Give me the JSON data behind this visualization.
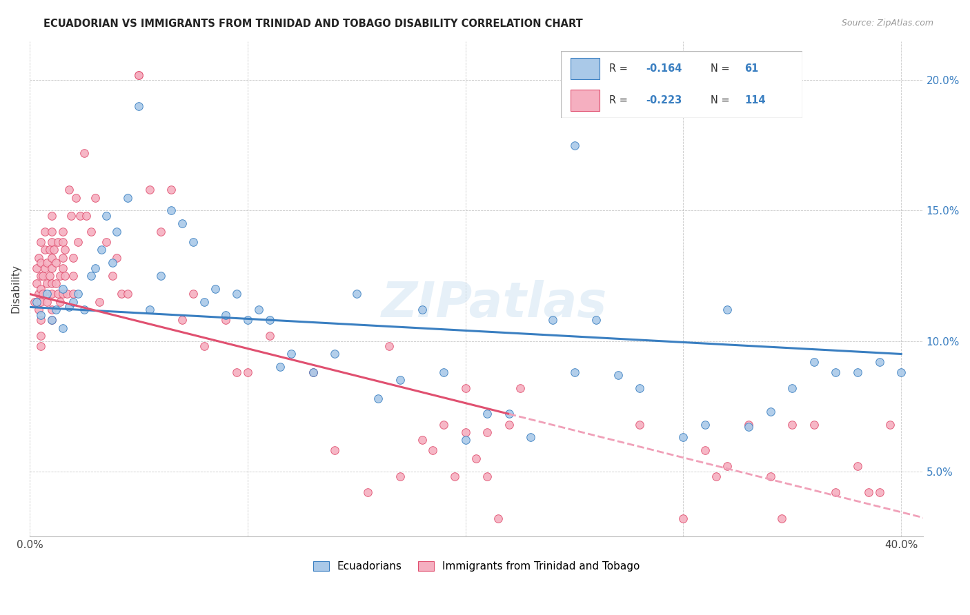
{
  "title": "ECUADORIAN VS IMMIGRANTS FROM TRINIDAD AND TOBAGO DISABILITY CORRELATION CHART",
  "source": "Source: ZipAtlas.com",
  "ylabel": "Disability",
  "xlim": [
    0.0,
    0.41
  ],
  "ylim": [
    0.025,
    0.215
  ],
  "yticks": [
    0.05,
    0.1,
    0.15,
    0.2
  ],
  "ytick_labels": [
    "5.0%",
    "10.0%",
    "15.0%",
    "20.0%"
  ],
  "xticks": [
    0.0,
    0.1,
    0.2,
    0.3,
    0.4
  ],
  "blue_R": -0.164,
  "blue_N": 61,
  "pink_R": -0.223,
  "pink_N": 114,
  "blue_color": "#aac9e8",
  "pink_color": "#f5afc0",
  "blue_line_color": "#3a7fc1",
  "pink_line_color": "#e05070",
  "pink_line_dashed_color": "#f0a0b8",
  "watermark": "ZIPatlas",
  "blue_scatter_x": [
    0.003,
    0.005,
    0.008,
    0.01,
    0.012,
    0.015,
    0.015,
    0.018,
    0.02,
    0.022,
    0.025,
    0.028,
    0.03,
    0.033,
    0.035,
    0.038,
    0.04,
    0.045,
    0.05,
    0.055,
    0.06,
    0.065,
    0.07,
    0.075,
    0.08,
    0.085,
    0.09,
    0.095,
    0.1,
    0.105,
    0.11,
    0.115,
    0.12,
    0.13,
    0.14,
    0.15,
    0.16,
    0.17,
    0.18,
    0.19,
    0.2,
    0.21,
    0.22,
    0.23,
    0.24,
    0.25,
    0.26,
    0.27,
    0.28,
    0.3,
    0.31,
    0.32,
    0.33,
    0.34,
    0.35,
    0.36,
    0.37,
    0.38,
    0.39,
    0.4,
    0.25
  ],
  "blue_scatter_y": [
    0.115,
    0.11,
    0.118,
    0.108,
    0.112,
    0.12,
    0.105,
    0.113,
    0.115,
    0.118,
    0.112,
    0.125,
    0.128,
    0.135,
    0.148,
    0.13,
    0.142,
    0.155,
    0.19,
    0.112,
    0.125,
    0.15,
    0.145,
    0.138,
    0.115,
    0.12,
    0.11,
    0.118,
    0.108,
    0.112,
    0.108,
    0.09,
    0.095,
    0.088,
    0.095,
    0.118,
    0.078,
    0.085,
    0.112,
    0.088,
    0.062,
    0.072,
    0.072,
    0.063,
    0.108,
    0.088,
    0.108,
    0.087,
    0.082,
    0.063,
    0.068,
    0.112,
    0.067,
    0.073,
    0.082,
    0.092,
    0.088,
    0.088,
    0.092,
    0.088,
    0.175
  ],
  "pink_scatter_x": [
    0.002,
    0.003,
    0.003,
    0.004,
    0.004,
    0.004,
    0.005,
    0.005,
    0.005,
    0.005,
    0.005,
    0.005,
    0.005,
    0.005,
    0.006,
    0.006,
    0.007,
    0.007,
    0.007,
    0.008,
    0.008,
    0.008,
    0.009,
    0.009,
    0.01,
    0.01,
    0.01,
    0.01,
    0.01,
    0.01,
    0.01,
    0.01,
    0.01,
    0.011,
    0.012,
    0.012,
    0.013,
    0.013,
    0.014,
    0.014,
    0.015,
    0.015,
    0.015,
    0.015,
    0.015,
    0.016,
    0.016,
    0.017,
    0.018,
    0.019,
    0.02,
    0.02,
    0.02,
    0.021,
    0.022,
    0.023,
    0.025,
    0.026,
    0.028,
    0.03,
    0.032,
    0.035,
    0.038,
    0.04,
    0.042,
    0.045,
    0.05,
    0.055,
    0.06,
    0.065,
    0.07,
    0.075,
    0.08,
    0.09,
    0.095,
    0.1,
    0.05,
    0.11,
    0.13,
    0.14,
    0.155,
    0.165,
    0.17,
    0.18,
    0.185,
    0.19,
    0.195,
    0.2,
    0.21,
    0.215,
    0.22,
    0.225,
    0.28,
    0.3,
    0.31,
    0.315,
    0.32,
    0.33,
    0.34,
    0.345,
    0.35,
    0.36,
    0.37,
    0.38,
    0.385,
    0.39,
    0.395,
    0.2,
    0.205,
    0.21
  ],
  "pink_scatter_y": [
    0.115,
    0.122,
    0.128,
    0.132,
    0.118,
    0.112,
    0.108,
    0.102,
    0.098,
    0.115,
    0.12,
    0.125,
    0.13,
    0.138,
    0.125,
    0.118,
    0.128,
    0.135,
    0.142,
    0.13,
    0.122,
    0.115,
    0.135,
    0.125,
    0.128,
    0.132,
    0.138,
    0.142,
    0.118,
    0.112,
    0.108,
    0.122,
    0.148,
    0.135,
    0.13,
    0.122,
    0.118,
    0.138,
    0.125,
    0.115,
    0.132,
    0.138,
    0.142,
    0.128,
    0.118,
    0.135,
    0.125,
    0.118,
    0.158,
    0.148,
    0.132,
    0.125,
    0.118,
    0.155,
    0.138,
    0.148,
    0.172,
    0.148,
    0.142,
    0.155,
    0.115,
    0.138,
    0.125,
    0.132,
    0.118,
    0.118,
    0.202,
    0.158,
    0.142,
    0.158,
    0.108,
    0.118,
    0.098,
    0.108,
    0.088,
    0.088,
    0.202,
    0.102,
    0.088,
    0.058,
    0.042,
    0.098,
    0.048,
    0.062,
    0.058,
    0.068,
    0.048,
    0.082,
    0.048,
    0.032,
    0.068,
    0.082,
    0.068,
    0.032,
    0.058,
    0.048,
    0.052,
    0.068,
    0.048,
    0.032,
    0.068,
    0.068,
    0.042,
    0.052,
    0.042,
    0.042,
    0.068,
    0.065,
    0.055,
    0.065
  ]
}
